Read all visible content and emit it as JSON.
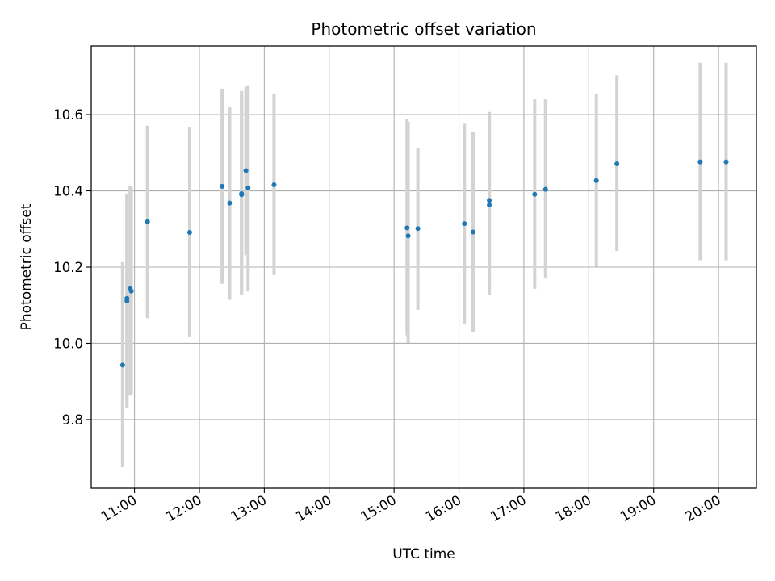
{
  "chart_data": {
    "type": "scatter",
    "title": "Photometric offset variation",
    "xlabel": "UTC time",
    "ylabel": "Photometric offset",
    "x_tick_labels": [
      "11:00",
      "12:00",
      "13:00",
      "14:00",
      "15:00",
      "16:00",
      "17:00",
      "18:00",
      "19:00",
      "20:00"
    ],
    "y_tick_labels": [
      "9.8",
      "10.0",
      "10.2",
      "10.4",
      "10.6"
    ],
    "y_ticks": [
      9.8,
      10.0,
      10.2,
      10.4,
      10.6
    ],
    "xlim": [
      "10:20",
      "20:35"
    ],
    "ylim": [
      9.62,
      10.78
    ],
    "grid": true,
    "colors": {
      "point": "#1f77b4",
      "errorbar": "#d3d3d3",
      "grid": "#b0b0b0"
    },
    "points": [
      {
        "x": "10:49",
        "y": 9.943,
        "yerr_low": 9.675,
        "yerr_high": 10.213
      },
      {
        "x": "10:53",
        "y": 10.118,
        "yerr_low": 9.843,
        "yerr_high": 10.393
      },
      {
        "x": "10:53",
        "y": 10.111,
        "yerr_low": 9.831,
        "yerr_high": 10.391
      },
      {
        "x": "10:56",
        "y": 10.143,
        "yerr_low": 9.863,
        "yerr_high": 10.413
      },
      {
        "x": "10:57",
        "y": 10.137,
        "yerr_low": 9.865,
        "yerr_high": 10.409
      },
      {
        "x": "11:12",
        "y": 10.319,
        "yerr_low": 10.066,
        "yerr_high": 10.571
      },
      {
        "x": "11:51",
        "y": 10.291,
        "yerr_low": 10.016,
        "yerr_high": 10.566
      },
      {
        "x": "12:21",
        "y": 10.412,
        "yerr_low": 10.156,
        "yerr_high": 10.668
      },
      {
        "x": "12:28",
        "y": 10.368,
        "yerr_low": 10.114,
        "yerr_high": 10.621
      },
      {
        "x": "12:39",
        "y": 10.39,
        "yerr_low": 10.131,
        "yerr_high": 10.662
      },
      {
        "x": "12:39",
        "y": 10.393,
        "yerr_low": 10.128,
        "yerr_high": 10.658
      },
      {
        "x": "12:43",
        "y": 10.453,
        "yerr_low": 10.231,
        "yerr_high": 10.673
      },
      {
        "x": "12:45",
        "y": 10.408,
        "yerr_low": 10.136,
        "yerr_high": 10.677
      },
      {
        "x": "13:09",
        "y": 10.416,
        "yerr_low": 10.179,
        "yerr_high": 10.654
      },
      {
        "x": "15:12",
        "y": 10.303,
        "yerr_low": 10.021,
        "yerr_high": 10.589
      },
      {
        "x": "15:13",
        "y": 10.282,
        "yerr_low": 10.001,
        "yerr_high": 10.581
      },
      {
        "x": "15:22",
        "y": 10.301,
        "yerr_low": 10.088,
        "yerr_high": 10.512
      },
      {
        "x": "16:05",
        "y": 10.314,
        "yerr_low": 10.052,
        "yerr_high": 10.576
      },
      {
        "x": "16:13",
        "y": 10.292,
        "yerr_low": 10.031,
        "yerr_high": 10.556
      },
      {
        "x": "16:28",
        "y": 10.375,
        "yerr_low": 10.128,
        "yerr_high": 10.607
      },
      {
        "x": "16:28",
        "y": 10.363,
        "yerr_low": 10.126,
        "yerr_high": 10.603
      },
      {
        "x": "17:10",
        "y": 10.391,
        "yerr_low": 10.143,
        "yerr_high": 10.64
      },
      {
        "x": "17:20",
        "y": 10.404,
        "yerr_low": 10.17,
        "yerr_high": 10.64
      },
      {
        "x": "18:07",
        "y": 10.427,
        "yerr_low": 10.201,
        "yerr_high": 10.653
      },
      {
        "x": "18:26",
        "y": 10.471,
        "yerr_low": 10.242,
        "yerr_high": 10.703
      },
      {
        "x": "19:43",
        "y": 10.476,
        "yerr_low": 10.218,
        "yerr_high": 10.736
      },
      {
        "x": "20:07",
        "y": 10.476,
        "yerr_low": 10.218,
        "yerr_high": 10.736
      }
    ]
  }
}
